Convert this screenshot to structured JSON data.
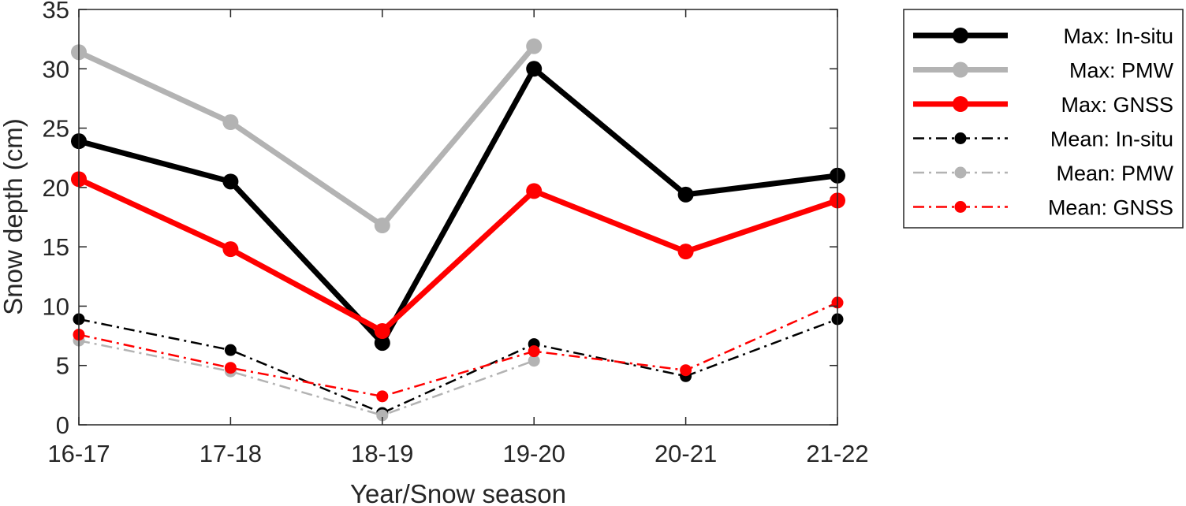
{
  "chart_data": {
    "type": "line",
    "categories": [
      "16-17",
      "17-18",
      "18-19",
      "19-20",
      "20-21",
      "21-22"
    ],
    "xlabel": "Year/Snow season",
    "ylabel": "Snow depth (cm)",
    "ylim": [
      0,
      35
    ],
    "yticks": [
      0,
      5,
      10,
      15,
      20,
      25,
      30,
      35
    ],
    "grid": false,
    "legend_position": "outside-right",
    "series": [
      {
        "name": "Max: In-situ",
        "values": [
          23.9,
          20.5,
          6.9,
          30.0,
          19.4,
          21.0
        ],
        "color": "#000000",
        "style": "solid",
        "weight": "thick"
      },
      {
        "name": "Max: PMW",
        "values": [
          31.4,
          25.5,
          16.8,
          31.9,
          null,
          null
        ],
        "color": "#b3b3b3",
        "style": "solid",
        "weight": "thick"
      },
      {
        "name": "Max: GNSS",
        "values": [
          20.7,
          14.8,
          7.9,
          19.7,
          14.6,
          18.9
        ],
        "color": "#ff0000",
        "style": "solid",
        "weight": "thick"
      },
      {
        "name": "Mean: In-situ",
        "values": [
          8.9,
          6.3,
          1.0,
          6.8,
          4.1,
          8.9
        ],
        "color": "#000000",
        "style": "dashdot",
        "weight": "thin"
      },
      {
        "name": "Mean: PMW",
        "values": [
          7.1,
          4.5,
          0.8,
          5.4,
          null,
          null
        ],
        "color": "#b3b3b3",
        "style": "dashdot",
        "weight": "thin"
      },
      {
        "name": "Mean: GNSS",
        "values": [
          7.6,
          4.8,
          2.4,
          6.2,
          4.6,
          10.3
        ],
        "color": "#ff0000",
        "style": "dashdot",
        "weight": "thin"
      }
    ]
  }
}
